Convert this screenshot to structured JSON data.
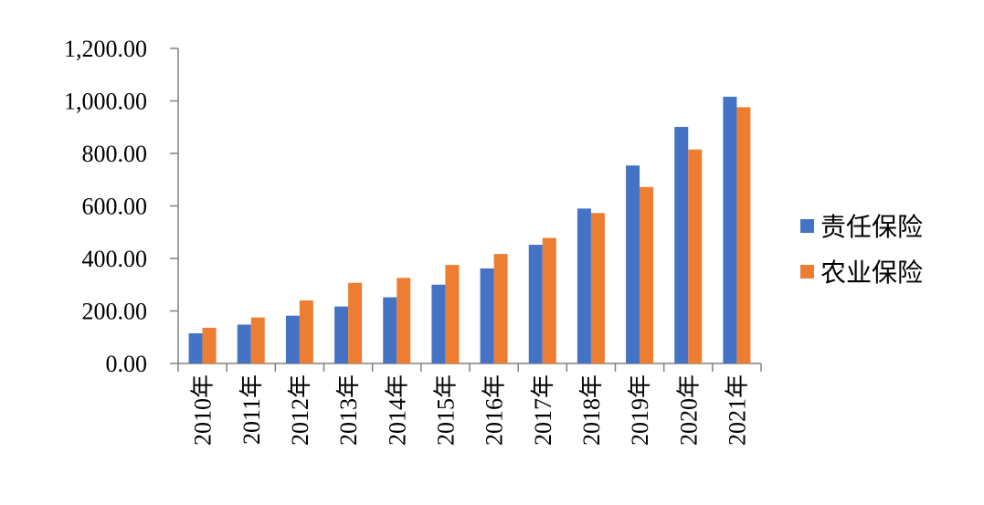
{
  "chart_data": {
    "type": "bar",
    "title": "",
    "xlabel": "",
    "ylabel": "",
    "categories": [
      "2010年",
      "2011年",
      "2012年",
      "2013年",
      "2014年",
      "2015年",
      "2016年",
      "2017年",
      "2018年",
      "2019年",
      "2020年",
      "2021年"
    ],
    "series": [
      {
        "name": "责任保险",
        "color": "#4472c4",
        "values": [
          115,
          148,
          182,
          217,
          252,
          300,
          362,
          452,
          590,
          754,
          901,
          1016
        ]
      },
      {
        "name": "农业保险",
        "color": "#ed7d31",
        "values": [
          136,
          175,
          240,
          307,
          326,
          375,
          417,
          478,
          573,
          672,
          815,
          976
        ]
      }
    ],
    "ylim": [
      0,
      1200
    ],
    "yticks": [
      "0.00",
      "200.00",
      "400.00",
      "600.00",
      "800.00",
      "1,000.00",
      "1,200.00"
    ],
    "grid": false,
    "legend_position": "right"
  }
}
